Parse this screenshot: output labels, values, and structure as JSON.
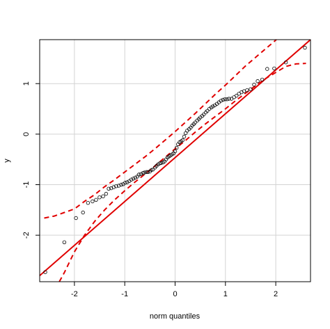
{
  "chart_data": {
    "type": "scatter",
    "title": "",
    "xlabel": "norm quantiles",
    "ylabel": "y",
    "xlim": [
      -2.69,
      2.69
    ],
    "ylim": [
      -2.92,
      1.87
    ],
    "xticks": [
      -2,
      -1,
      0,
      1,
      2
    ],
    "xtick_labels": [
      "-2",
      "-1",
      "0",
      "1",
      "2"
    ],
    "yticks": [
      -2,
      -1,
      0,
      1
    ],
    "ytick_labels": [
      "-2",
      "-1",
      "0",
      "1"
    ],
    "grid": true,
    "legend": "none",
    "colors": {
      "points": "#000000",
      "reference_line": "#e00000",
      "envelope": "#e00000",
      "grid": "#d3d3d3"
    },
    "points": [
      [
        -2.58,
        -2.73
      ],
      [
        -2.2,
        -2.14
      ],
      [
        -1.97,
        -1.66
      ],
      [
        -1.83,
        -1.55
      ],
      [
        -1.73,
        -1.36
      ],
      [
        -1.64,
        -1.33
      ],
      [
        -1.57,
        -1.3
      ],
      [
        -1.5,
        -1.25
      ],
      [
        -1.43,
        -1.23
      ],
      [
        -1.37,
        -1.18
      ],
      [
        -1.32,
        -1.08
      ],
      [
        -1.27,
        -1.07
      ],
      [
        -1.22,
        -1.05
      ],
      [
        -1.17,
        -1.03
      ],
      [
        -1.12,
        -1.02
      ],
      [
        -1.07,
        -1.0
      ],
      [
        -1.03,
        -0.99
      ],
      [
        -0.99,
        -0.96
      ],
      [
        -0.95,
        -0.95
      ],
      [
        -0.91,
        -0.93
      ],
      [
        -0.87,
        -0.9
      ],
      [
        -0.83,
        -0.88
      ],
      [
        -0.79,
        -0.86
      ],
      [
        -0.75,
        -0.84
      ],
      [
        -0.72,
        -0.8
      ],
      [
        -0.68,
        -0.79
      ],
      [
        -0.64,
        -0.77
      ],
      [
        -0.61,
        -0.76
      ],
      [
        -0.57,
        -0.75
      ],
      [
        -0.54,
        -0.75
      ],
      [
        -0.5,
        -0.74
      ],
      [
        -0.47,
        -0.71
      ],
      [
        -0.44,
        -0.7
      ],
      [
        -0.4,
        -0.66
      ],
      [
        -0.37,
        -0.63
      ],
      [
        -0.34,
        -0.6
      ],
      [
        -0.31,
        -0.58
      ],
      [
        -0.28,
        -0.57
      ],
      [
        -0.24,
        -0.56
      ],
      [
        -0.21,
        -0.54
      ],
      [
        -0.18,
        -0.5
      ],
      [
        -0.15,
        -0.46
      ],
      [
        -0.12,
        -0.44
      ],
      [
        -0.09,
        -0.42
      ],
      [
        -0.06,
        -0.4
      ],
      [
        -0.03,
        -0.38
      ],
      [
        0.0,
        -0.34
      ],
      [
        0.03,
        -0.27
      ],
      [
        0.06,
        -0.2
      ],
      [
        0.09,
        -0.16
      ],
      [
        0.12,
        -0.14
      ],
      [
        0.15,
        -0.12
      ],
      [
        0.18,
        -0.05
      ],
      [
        0.21,
        0.02
      ],
      [
        0.24,
        0.07
      ],
      [
        0.28,
        0.1
      ],
      [
        0.31,
        0.13
      ],
      [
        0.34,
        0.17
      ],
      [
        0.37,
        0.2
      ],
      [
        0.4,
        0.23
      ],
      [
        0.44,
        0.27
      ],
      [
        0.47,
        0.3
      ],
      [
        0.5,
        0.33
      ],
      [
        0.54,
        0.36
      ],
      [
        0.57,
        0.39
      ],
      [
        0.61,
        0.43
      ],
      [
        0.64,
        0.46
      ],
      [
        0.68,
        0.5
      ],
      [
        0.72,
        0.53
      ],
      [
        0.75,
        0.55
      ],
      [
        0.79,
        0.57
      ],
      [
        0.83,
        0.6
      ],
      [
        0.87,
        0.63
      ],
      [
        0.91,
        0.66
      ],
      [
        0.95,
        0.68
      ],
      [
        0.99,
        0.69
      ],
      [
        1.03,
        0.69
      ],
      [
        1.07,
        0.7
      ],
      [
        1.12,
        0.7
      ],
      [
        1.17,
        0.73
      ],
      [
        1.22,
        0.76
      ],
      [
        1.27,
        0.8
      ],
      [
        1.32,
        0.83
      ],
      [
        1.37,
        0.85
      ],
      [
        1.43,
        0.87
      ],
      [
        1.5,
        0.89
      ],
      [
        1.57,
        0.98
      ],
      [
        1.64,
        1.05
      ],
      [
        1.73,
        1.08
      ],
      [
        1.83,
        1.29
      ],
      [
        1.97,
        1.3
      ],
      [
        2.2,
        1.42
      ],
      [
        2.58,
        1.71
      ]
    ],
    "reference_line": [
      [
        -2.69,
        -2.8
      ],
      [
        2.69,
        1.87
      ]
    ],
    "envelope_upper": [
      [
        -2.6,
        -1.66
      ],
      [
        -2.4,
        -1.62
      ],
      [
        -2.2,
        -1.55
      ],
      [
        -2.0,
        -1.48
      ],
      [
        -1.8,
        -1.33
      ],
      [
        -1.6,
        -1.2
      ],
      [
        -1.4,
        -1.04
      ],
      [
        -1.2,
        -0.9
      ],
      [
        -1.0,
        -0.75
      ],
      [
        -0.8,
        -0.6
      ],
      [
        -0.6,
        -0.45
      ],
      [
        -0.4,
        -0.29
      ],
      [
        -0.2,
        -0.12
      ],
      [
        0.0,
        0.05
      ],
      [
        0.2,
        0.23
      ],
      [
        0.4,
        0.41
      ],
      [
        0.6,
        0.6
      ],
      [
        0.8,
        0.79
      ],
      [
        1.0,
        0.97
      ],
      [
        1.2,
        1.16
      ],
      [
        1.4,
        1.35
      ],
      [
        1.6,
        1.52
      ],
      [
        1.8,
        1.69
      ],
      [
        2.0,
        1.86
      ],
      [
        2.04,
        1.9
      ]
    ],
    "envelope_lower": [
      [
        -2.3,
        -2.92
      ],
      [
        -2.2,
        -2.74
      ],
      [
        -2.0,
        -2.33
      ],
      [
        -1.8,
        -2.0
      ],
      [
        -1.6,
        -1.73
      ],
      [
        -1.4,
        -1.5
      ],
      [
        -1.2,
        -1.3
      ],
      [
        -1.0,
        -1.12
      ],
      [
        -0.8,
        -0.95
      ],
      [
        -0.6,
        -0.79
      ],
      [
        -0.4,
        -0.63
      ],
      [
        -0.2,
        -0.46
      ],
      [
        0.0,
        -0.29
      ],
      [
        0.2,
        -0.13
      ],
      [
        0.4,
        0.04
      ],
      [
        0.6,
        0.2
      ],
      [
        0.8,
        0.35
      ],
      [
        1.0,
        0.5
      ],
      [
        1.2,
        0.66
      ],
      [
        1.4,
        0.81
      ],
      [
        1.6,
        0.96
      ],
      [
        1.8,
        1.1
      ],
      [
        2.0,
        1.22
      ],
      [
        2.2,
        1.34
      ],
      [
        2.4,
        1.39
      ],
      [
        2.6,
        1.4
      ]
    ]
  }
}
